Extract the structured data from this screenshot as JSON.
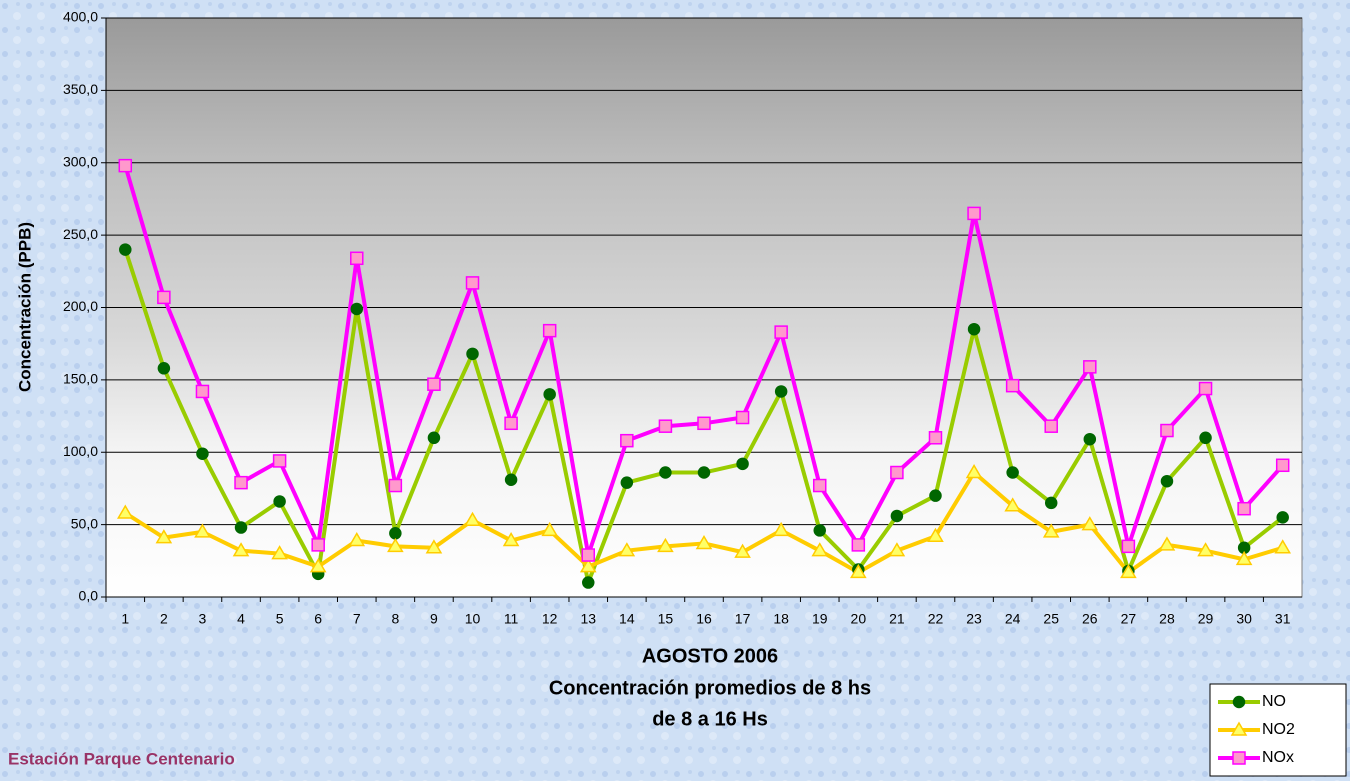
{
  "chart_data": {
    "type": "line",
    "title_lines": [
      "AGOSTO 2006",
      "Concentración promedios de 8 hs",
      "de 8 a 16 Hs"
    ],
    "ylabel": "Concentración (PPB)",
    "annotation": "Estación Parque Centenario",
    "categories": [
      "1",
      "2",
      "3",
      "4",
      "5",
      "6",
      "7",
      "8",
      "9",
      "10",
      "11",
      "12",
      "13",
      "14",
      "15",
      "16",
      "17",
      "18",
      "19",
      "20",
      "21",
      "22",
      "23",
      "24",
      "25",
      "26",
      "27",
      "28",
      "29",
      "30",
      "31"
    ],
    "series": [
      {
        "name": "NO",
        "color": "#99cc00",
        "marker": "circle",
        "marker_color": "#006600",
        "values": [
          240,
          158,
          99,
          48,
          66,
          16,
          199,
          44,
          110,
          168,
          81,
          140,
          10,
          79,
          86,
          86,
          92,
          142,
          46,
          19,
          56,
          70,
          185,
          86,
          65,
          109,
          18,
          80,
          110,
          34,
          55
        ]
      },
      {
        "name": "NO2",
        "color": "#ffcc00",
        "marker": "triangle",
        "marker_color": "#ffff66",
        "values": [
          58,
          41,
          45,
          32,
          30,
          21,
          39,
          35,
          34,
          53,
          39,
          46,
          21,
          32,
          35,
          37,
          31,
          46,
          32,
          17,
          32,
          42,
          86,
          63,
          45,
          50,
          17,
          36,
          32,
          26,
          34
        ]
      },
      {
        "name": "NOx",
        "color": "#ff00ff",
        "marker": "square",
        "marker_color": "#ff99cc",
        "values": [
          298,
          207,
          142,
          79,
          94,
          36,
          234,
          77,
          147,
          217,
          120,
          184,
          29,
          108,
          118,
          120,
          124,
          183,
          77,
          36,
          86,
          110,
          265,
          146,
          118,
          159,
          35,
          115,
          144,
          61,
          91
        ]
      }
    ],
    "ylim": [
      0,
      400
    ],
    "yticks": [
      {
        "value": 0,
        "label": "0,0"
      },
      {
        "value": 50,
        "label": "50,0"
      },
      {
        "value": 100,
        "label": "100,0"
      },
      {
        "value": 150,
        "label": "150,0"
      },
      {
        "value": 200,
        "label": "200,0"
      },
      {
        "value": 250,
        "label": "250,0"
      },
      {
        "value": 300,
        "label": "300,0"
      },
      {
        "value": 350,
        "label": "350,0"
      },
      {
        "value": 400,
        "label": "400,0"
      }
    ],
    "grid": true,
    "legend": "bottom-right"
  }
}
